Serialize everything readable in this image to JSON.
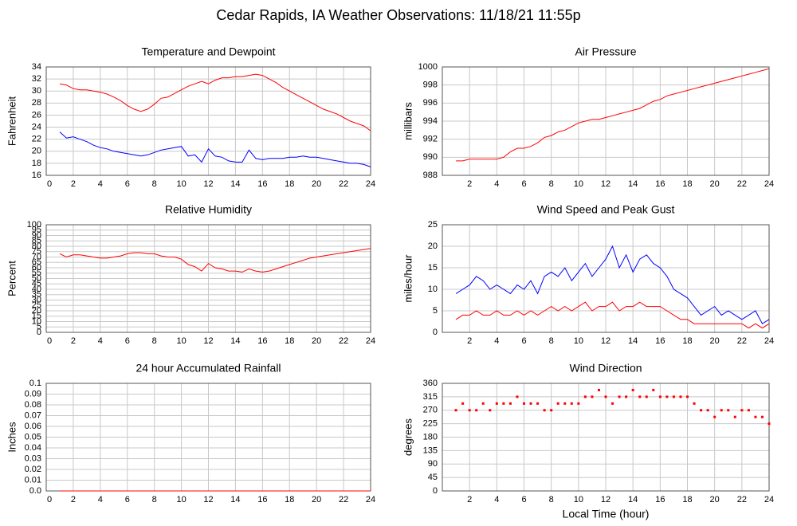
{
  "title": "Cedar Rapids, IA Weather Observations: 11/18/21 11:55p",
  "chart_data": [
    {
      "type": "line",
      "title": "Temperature and Dewpoint",
      "ylabel": "Fahrenheit",
      "x": [
        1,
        1.5,
        2,
        2.5,
        3,
        3.5,
        4,
        4.5,
        5,
        5.5,
        6,
        6.5,
        7,
        7.5,
        8,
        8.5,
        9,
        9.5,
        10,
        10.5,
        11,
        11.5,
        12,
        12.5,
        13,
        13.5,
        14,
        14.5,
        15,
        15.5,
        16,
        16.5,
        17,
        17.5,
        18,
        18.5,
        19,
        19.5,
        20,
        20.5,
        21,
        21.5,
        22,
        22.5,
        23,
        23.5,
        24
      ],
      "series": [
        {
          "color": "#ff0000",
          "values": [
            31.2,
            31,
            30.4,
            30.2,
            30.2,
            30,
            29.8,
            29.5,
            29,
            28.4,
            27.6,
            27,
            26.6,
            27,
            27.8,
            28.8,
            29,
            29.6,
            30.2,
            30.8,
            31.2,
            31.6,
            31.2,
            31.8,
            32.2,
            32.2,
            32.4,
            32.4,
            32.6,
            32.8,
            32.6,
            32,
            31.4,
            30.6,
            30,
            29.4,
            28.8,
            28.2,
            27.6,
            27,
            26.6,
            26.2,
            25.6,
            25,
            24.6,
            24.2,
            23.4
          ]
        },
        {
          "color": "#0000ff",
          "values": [
            23.2,
            22.2,
            22.4,
            22,
            21.6,
            21,
            20.6,
            20.4,
            20,
            19.8,
            19.6,
            19.4,
            19.2,
            19.4,
            19.8,
            20.2,
            20.4,
            20.6,
            20.8,
            19.2,
            19.4,
            18.2,
            20.4,
            19.2,
            19,
            18.4,
            18.2,
            18.2,
            20.2,
            18.8,
            18.6,
            18.8,
            18.8,
            18.8,
            19,
            19,
            19.2,
            19,
            19,
            18.8,
            18.6,
            18.4,
            18.2,
            18,
            18,
            17.8,
            17.4
          ]
        }
      ],
      "xlim": [
        0,
        24
      ],
      "xticks": [
        0,
        2,
        4,
        6,
        8,
        10,
        12,
        14,
        16,
        18,
        20,
        22,
        24
      ],
      "ylim": [
        16,
        34
      ],
      "yticks": [
        16,
        18,
        20,
        22,
        24,
        26,
        28,
        30,
        32,
        34
      ],
      "grid": true
    },
    {
      "type": "line",
      "title": "Air Pressure",
      "ylabel": "millibars",
      "x": [
        1,
        1.5,
        2,
        2.5,
        3,
        3.5,
        4,
        4.5,
        5,
        5.5,
        6,
        6.5,
        7,
        7.5,
        8,
        8.5,
        9,
        9.5,
        10,
        10.5,
        11,
        11.5,
        12,
        12.5,
        13,
        13.5,
        14,
        14.5,
        15,
        15.5,
        16,
        16.5,
        17,
        17.5,
        18,
        18.5,
        19,
        19.5,
        20,
        20.5,
        21,
        21.5,
        22,
        22.5,
        23,
        23.5,
        24
      ],
      "series": [
        {
          "color": "#ff0000",
          "values": [
            989.6,
            989.6,
            989.8,
            989.8,
            989.8,
            989.8,
            989.8,
            990,
            990.6,
            991,
            991,
            991.2,
            991.6,
            992.2,
            992.4,
            992.8,
            993,
            993.4,
            993.8,
            994,
            994.2,
            994.2,
            994.4,
            994.6,
            994.8,
            995,
            995.2,
            995.4,
            995.8,
            996.2,
            996.4,
            996.8,
            997,
            997.2,
            997.4,
            997.6,
            997.8,
            998,
            998.2,
            998.4,
            998.6,
            998.8,
            999,
            999.2,
            999.4,
            999.6,
            999.8
          ]
        }
      ],
      "xlim": [
        0,
        24
      ],
      "xticks": [
        2,
        4,
        6,
        8,
        10,
        12,
        14,
        16,
        18,
        20,
        22,
        24
      ],
      "ylim": [
        988,
        1000
      ],
      "yticks": [
        988,
        990,
        992,
        994,
        996,
        998,
        1000
      ],
      "grid": true
    },
    {
      "type": "line",
      "title": "Relative Humidity",
      "ylabel": "Percent",
      "x": [
        1,
        1.5,
        2,
        2.5,
        3,
        3.5,
        4,
        4.5,
        5,
        5.5,
        6,
        6.5,
        7,
        7.5,
        8,
        8.5,
        9,
        9.5,
        10,
        10.5,
        11,
        11.5,
        12,
        12.5,
        13,
        13.5,
        14,
        14.5,
        15,
        15.5,
        16,
        16.5,
        17,
        17.5,
        18,
        18.5,
        19,
        19.5,
        20,
        20.5,
        21,
        21.5,
        22,
        22.5,
        23,
        23.5,
        24
      ],
      "series": [
        {
          "color": "#ff0000",
          "values": [
            73,
            70,
            72,
            72,
            71,
            70,
            69,
            69,
            70,
            71,
            73,
            74,
            74,
            73,
            73,
            71,
            70,
            70,
            68,
            63,
            61,
            57,
            64,
            60,
            59,
            57,
            57,
            56,
            59,
            57,
            56,
            57,
            59,
            61,
            63,
            65,
            67,
            69,
            70,
            71,
            72,
            73,
            74,
            75,
            76,
            77,
            78
          ]
        }
      ],
      "xlim": [
        0,
        24
      ],
      "xticks": [
        0,
        2,
        4,
        6,
        8,
        10,
        12,
        14,
        16,
        18,
        20,
        22,
        24
      ],
      "ylim": [
        0,
        100
      ],
      "yticks": [
        0,
        5,
        10,
        15,
        20,
        25,
        30,
        35,
        40,
        45,
        50,
        55,
        60,
        65,
        70,
        75,
        80,
        85,
        90,
        95,
        100
      ],
      "grid": true
    },
    {
      "type": "line",
      "title": "Wind Speed and Peak Gust",
      "ylabel": "miles/hour",
      "x": [
        1,
        1.5,
        2,
        2.5,
        3,
        3.5,
        4,
        4.5,
        5,
        5.5,
        6,
        6.5,
        7,
        7.5,
        8,
        8.5,
        9,
        9.5,
        10,
        10.5,
        11,
        11.5,
        12,
        12.5,
        13,
        13.5,
        14,
        14.5,
        15,
        15.5,
        16,
        16.5,
        17,
        17.5,
        18,
        18.5,
        19,
        19.5,
        20,
        20.5,
        21,
        21.5,
        22,
        22.5,
        23,
        23.5,
        24
      ],
      "series": [
        {
          "color": "#0000ff",
          "values": [
            9,
            10,
            11,
            13,
            12,
            10,
            11,
            10,
            9,
            11,
            10,
            12,
            9,
            13,
            14,
            13,
            15,
            12,
            14,
            16,
            13,
            15,
            17,
            20,
            15,
            18,
            14,
            17,
            18,
            16,
            15,
            13,
            10,
            9,
            8,
            6,
            4,
            5,
            6,
            4,
            5,
            4,
            3,
            4,
            5,
            2,
            3
          ]
        },
        {
          "color": "#ff0000",
          "values": [
            3,
            4,
            4,
            5,
            4,
            4,
            5,
            4,
            4,
            5,
            4,
            5,
            4,
            5,
            6,
            5,
            6,
            5,
            6,
            7,
            5,
            6,
            6,
            7,
            5,
            6,
            6,
            7,
            6,
            6,
            6,
            5,
            4,
            3,
            3,
            2,
            2,
            2,
            2,
            2,
            2,
            2,
            2,
            1,
            2,
            1,
            2
          ]
        }
      ],
      "xlim": [
        0,
        24
      ],
      "xticks": [
        2,
        4,
        6,
        8,
        10,
        12,
        14,
        16,
        18,
        20,
        22,
        24
      ],
      "ylim": [
        0,
        25
      ],
      "yticks": [
        0,
        5,
        10,
        15,
        20,
        25
      ],
      "grid": true
    },
    {
      "type": "line",
      "title": "24 hour Accumulated Rainfall",
      "ylabel": "Inches",
      "x": [
        1,
        24
      ],
      "series": [
        {
          "color": "#ff0000",
          "values": [
            0,
            0
          ]
        }
      ],
      "xlim": [
        0,
        24
      ],
      "xticks": [
        0,
        2,
        4,
        6,
        8,
        10,
        12,
        14,
        16,
        18,
        20,
        22,
        24
      ],
      "ylim": [
        0,
        0.1
      ],
      "yticks": [
        {
          "value": 0,
          "label": "0.0"
        },
        0.01,
        0.02,
        0.03,
        0.04,
        0.05,
        0.06,
        0.07,
        0.08,
        0.09,
        0.1
      ],
      "grid": true
    },
    {
      "type": "scatter",
      "title": "Wind Direction",
      "ylabel": "degrees",
      "xlabel": "Local Time (hour)",
      "x": [
        1,
        1.5,
        2,
        2.5,
        3,
        3.5,
        4,
        4.5,
        5,
        5.5,
        6,
        6.5,
        7,
        7.5,
        8,
        8.5,
        9,
        9.5,
        10,
        10.5,
        11,
        11.5,
        12,
        12.5,
        13,
        13.5,
        14,
        14.5,
        15,
        15.5,
        16,
        16.5,
        17,
        17.5,
        18,
        18.5,
        19,
        19.5,
        20,
        20.5,
        21,
        21.5,
        22,
        22.5,
        23,
        23.5,
        24
      ],
      "series": [
        {
          "color": "#ff0000",
          "values": [
            270,
            292.5,
            270,
            270,
            292.5,
            270,
            292.5,
            292.5,
            292.5,
            315,
            292.5,
            292.5,
            292.5,
            270,
            270,
            292.5,
            292.5,
            292.5,
            292.5,
            315,
            315,
            337.5,
            315,
            292.5,
            315,
            315,
            337.5,
            315,
            315,
            337.5,
            315,
            315,
            315,
            315,
            315,
            292.5,
            270,
            270,
            247.5,
            270,
            270,
            247.5,
            270,
            270,
            247.5,
            247.5,
            225
          ]
        }
      ],
      "xlim": [
        0,
        24
      ],
      "xticks": [
        2,
        4,
        6,
        8,
        10,
        12,
        14,
        16,
        18,
        20,
        22,
        24
      ],
      "ylim": [
        0,
        360
      ],
      "yticks": [
        0,
        45,
        90,
        135,
        180,
        225,
        270,
        315,
        360
      ],
      "grid": true
    }
  ]
}
